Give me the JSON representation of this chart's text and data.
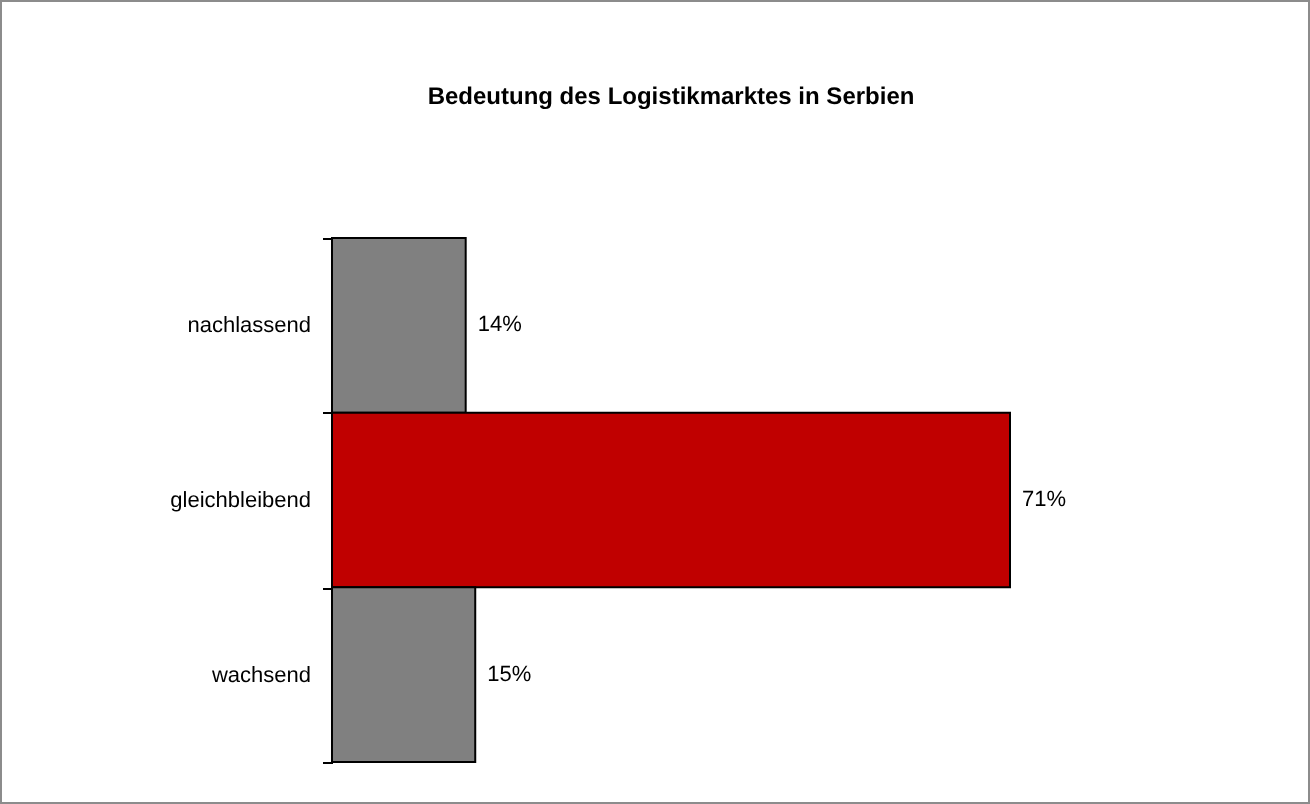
{
  "chart_data": {
    "type": "bar",
    "orientation": "horizontal",
    "title": "Bedeutung des Logistikmarktes in Serbien",
    "categories": [
      "nachlassend",
      "gleichbleibend",
      "wachsend"
    ],
    "values": [
      14,
      71,
      15
    ],
    "colors": [
      "#808080",
      "#c00000",
      "#808080"
    ],
    "value_labels": [
      "14%",
      "71%",
      "15%"
    ],
    "legend": false,
    "grid": false
  }
}
